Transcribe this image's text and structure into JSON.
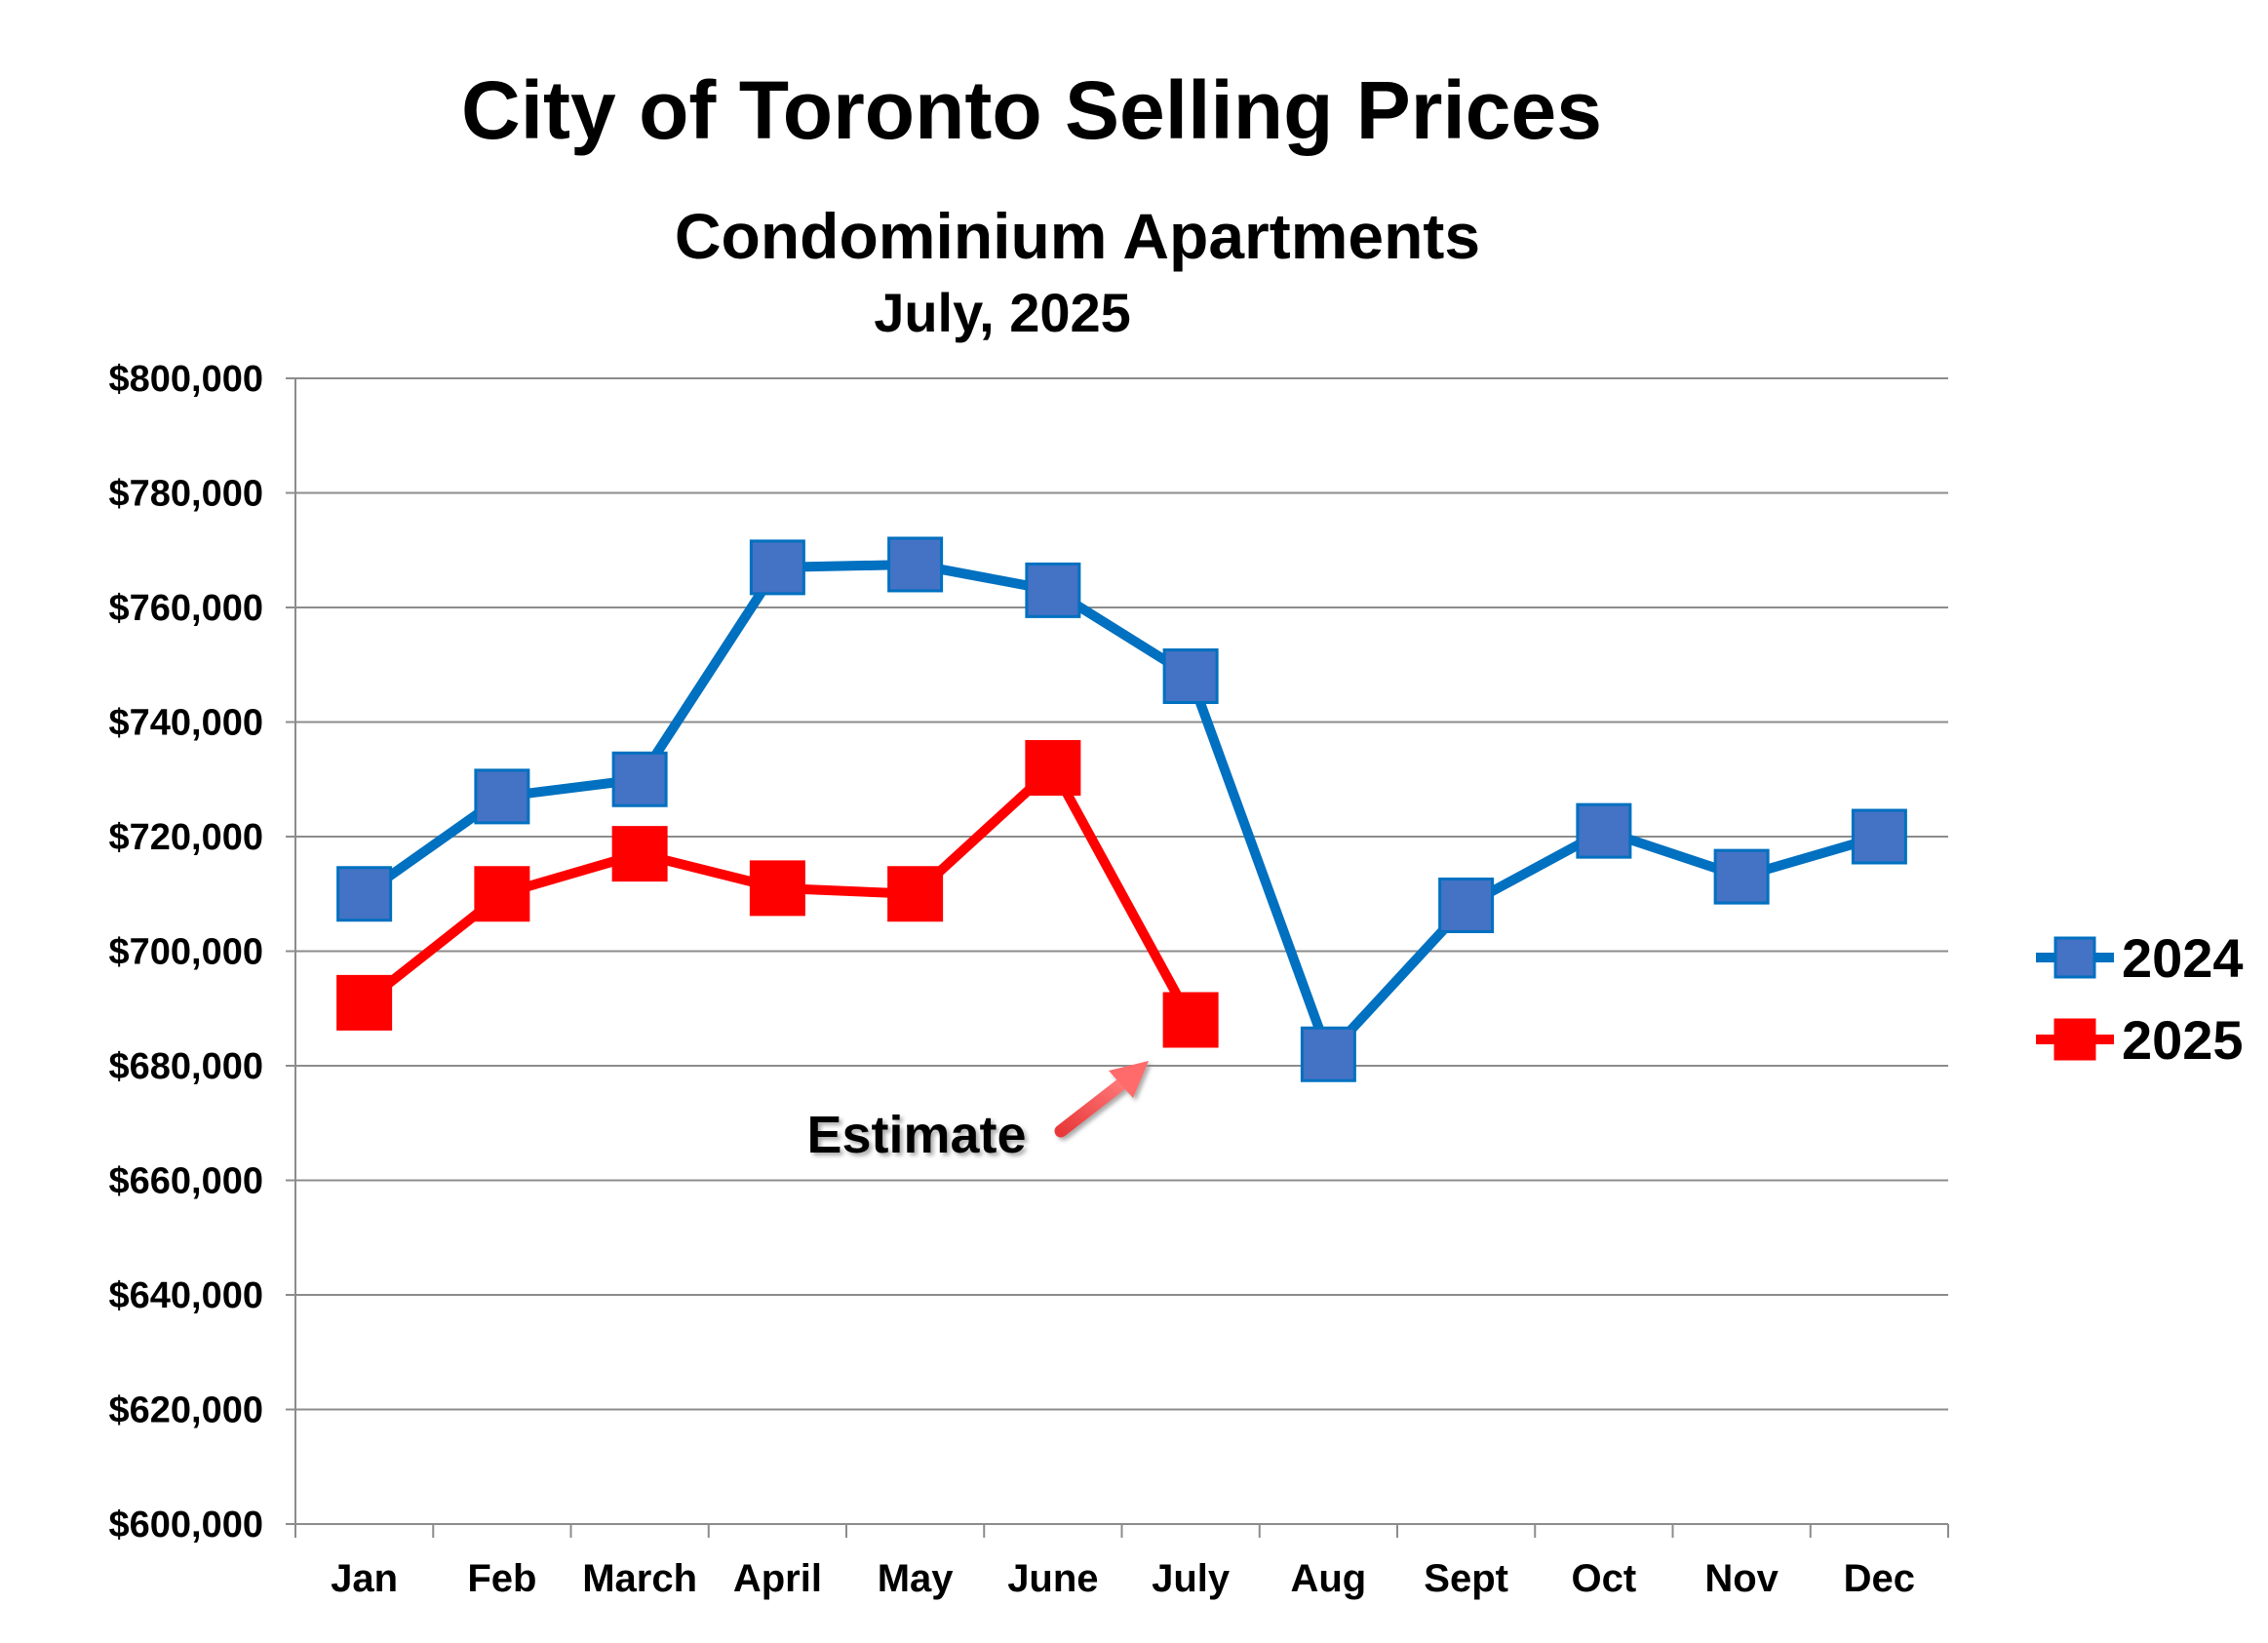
{
  "chart_data": {
    "type": "line",
    "title": "City of Toronto Selling Prices",
    "subtitle": "Condominium Apartments",
    "date_label": "July, 2025",
    "xlabel": "",
    "ylabel": "",
    "categories": [
      "Jan",
      "Feb",
      "March",
      "April",
      "May",
      "June",
      "July",
      "Aug",
      "Sept",
      "Oct",
      "Nov",
      "Dec"
    ],
    "ylim": [
      600000,
      800000
    ],
    "yticks": [
      600000,
      620000,
      640000,
      660000,
      680000,
      700000,
      720000,
      740000,
      760000,
      780000,
      800000
    ],
    "ytick_labels": [
      "$600,000",
      "$620,000",
      "$640,000",
      "$660,000",
      "$680,000",
      "$700,000",
      "$720,000",
      "$740,000",
      "$760,000",
      "$780,000",
      "$800,000"
    ],
    "grid": true,
    "legend_position": "right",
    "series": [
      {
        "name": "2024",
        "color": "#0070C0",
        "marker_color": "#4472C4",
        "values": [
          710000,
          727000,
          730000,
          767000,
          767500,
          763000,
          748000,
          682000,
          708000,
          721000,
          713000,
          720000
        ]
      },
      {
        "name": "2025",
        "color": "#FF0000",
        "marker_color": "#FF0000",
        "values": [
          691000,
          710000,
          717000,
          711000,
          710000,
          732000,
          688000,
          null,
          null,
          null,
          null,
          null
        ]
      }
    ],
    "annotations": [
      {
        "text": "Estimate",
        "target_category": "July",
        "target_series": "2025"
      }
    ]
  }
}
